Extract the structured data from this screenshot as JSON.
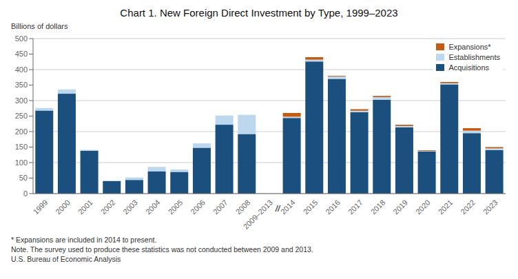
{
  "chart_data": {
    "type": "bar",
    "stacked": true,
    "title": "Chart 1. New Foreign Direct Investment by Type, 1999–2023",
    "ylabel": "Billions of dollars",
    "categories": [
      "1999",
      "2000",
      "2001",
      "2002",
      "2003",
      "2004",
      "2005",
      "2006",
      "2007",
      "2008",
      "2009–2013",
      "2014",
      "2015",
      "2016",
      "2017",
      "2018",
      "2019",
      "2020",
      "2021",
      "2022",
      "2023"
    ],
    "series": [
      {
        "name": "Acquisitions",
        "color": "#1b4f7e",
        "values": [
          268,
          322,
          138,
          40,
          44,
          72,
          70,
          148,
          222,
          192,
          0,
          244,
          426,
          370,
          263,
          303,
          214,
          136,
          352,
          195,
          140
        ]
      },
      {
        "name": "Establishments",
        "color": "#bdd7ee",
        "values": [
          8,
          14,
          3,
          2,
          8,
          14,
          8,
          14,
          30,
          62,
          0,
          4,
          6,
          8,
          4,
          8,
          4,
          2,
          4,
          8,
          6
        ]
      },
      {
        "name": "Expansions*",
        "color": "#c55a11",
        "values": [
          0,
          0,
          0,
          0,
          0,
          0,
          0,
          0,
          0,
          0,
          0,
          12,
          8,
          2,
          5,
          4,
          4,
          2,
          4,
          8,
          4
        ]
      }
    ],
    "ylim": [
      0,
      500
    ],
    "yticks": [
      0,
      50,
      100,
      150,
      200,
      250,
      300,
      350,
      400,
      450,
      500
    ],
    "grid": true,
    "legend": "upper right",
    "annotations": [
      {
        "text": "//",
        "x": "2009–2013"
      },
      {
        "text": "* Expansions are included in 2014 to present."
      },
      {
        "text": "Note. The survey used to produce these statistics was not conducted between 2009 and 2013."
      },
      {
        "text": "U.S. Bureau of Economic Analysis"
      }
    ]
  }
}
